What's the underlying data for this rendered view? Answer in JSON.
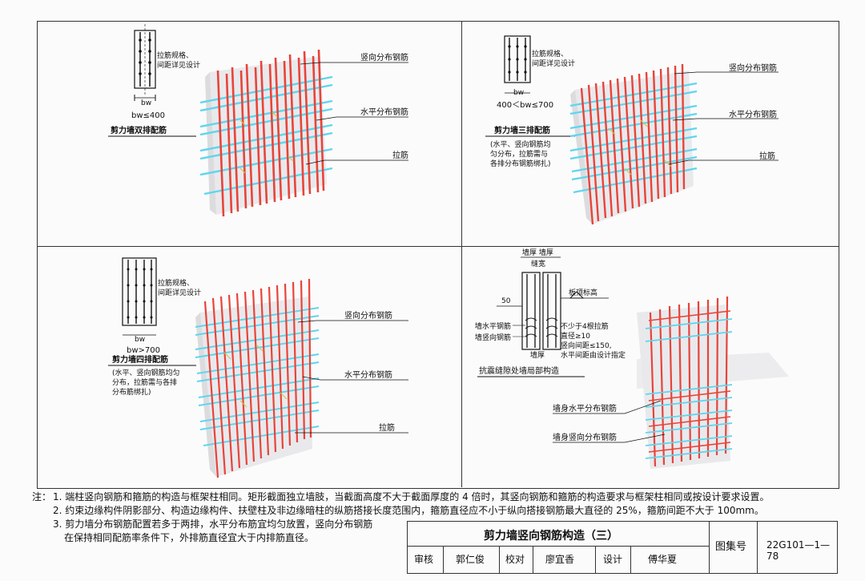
{
  "panels": {
    "p1": {
      "detail_label": "拉筋规格、\n间距详见设计",
      "width_label": "bw",
      "condition": "bw≤400",
      "title": "剪力墙双排配筋",
      "callout_vertical": "竖向分布钢筋",
      "callout_horizontal": "水平分布钢筋",
      "callout_tie": "拉筋"
    },
    "p2": {
      "detail_label": "拉筋规格、\n间距详见设计",
      "width_label": "bw",
      "condition": "400＜bw≤700",
      "title": "剪力墙三排配筋",
      "note": "(水平、竖向钢筋均\n匀分布，拉筋需与\n各排分布钢筋绑扎)",
      "callout_vertical": "竖向分布钢筋",
      "callout_horizontal": "水平分布钢筋",
      "callout_tie": "拉筋"
    },
    "p3": {
      "detail_label": "拉筋规格、\n间距详见设计",
      "width_label": "bw",
      "condition": "bw>700",
      "title": "剪力墙四排配筋",
      "note": "(水平、竖向钢筋均匀\n分布，拉筋需与各排\n分布筋绑扎)",
      "callout_vertical": "竖向分布钢筋",
      "callout_horizontal": "水平分布钢筋",
      "callout_tie": "拉筋"
    },
    "p4": {
      "top_labels": "墙厚 墙厚",
      "gap_label": "缝宽",
      "dim_50": "50",
      "slab_label": "板顶标高",
      "wall_horizontal": "墙水平钢筋",
      "wall_vertical": "墙竖向钢筋",
      "tie_note": "不少于4根拉筋\n直径≥10\n竖向间距≤150,\n水平间距由设计指定",
      "bottom_label": "墙厚",
      "title": "抗震缝隙处墙局部构造",
      "callout_horizontal": "墙身水平分布钢筋",
      "callout_vertical": "墙身竖向分布钢筋"
    }
  },
  "notes": {
    "prefix": "注：",
    "n1": "1. 端柱竖向钢筋和箍筋的构造与框架柱相同。矩形截面独立墙肢，当截面高度不大于截面厚度的 4 倍时，其竖向钢筋和箍筋的构造要求与框架柱相同或按设计要求设置。",
    "n2": "2. 约束边缘构件阴影部分、构造边缘构件、扶壁柱及非边缘暗柱的纵筋搭接长度范围内，箍筋直径应不小于纵向搭接钢筋最大直径的 25%，箍筋间距不大于 100mm。",
    "n3a": "3. 剪力墙分布钢筋配置若多于两排，水平分布筋宜均匀放置，竖向分布钢筋",
    "n3b": "在保持相同配筋率条件下，外排筋直径宜大于内排筋直径。"
  },
  "title_block": {
    "title": "剪力墙竖向钢筋构造（三）",
    "atlas_label": "图集号",
    "atlas_no": "22G101—1—78",
    "review_label": "审核",
    "reviewer": "郭仁俊",
    "check_label": "校对",
    "checker": "廖宜香",
    "design_label": "设计",
    "designer": "傅华夏"
  },
  "colors": {
    "rebar_red": "#e8443a",
    "rebar_cyan": "#5ed6ee",
    "tie_yellow": "#c8c84a",
    "wall_gray": "#e9e9ec"
  }
}
